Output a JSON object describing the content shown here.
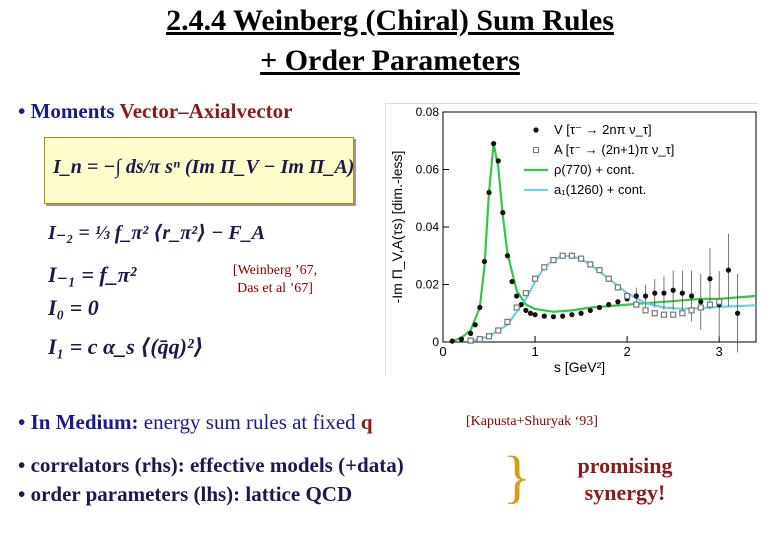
{
  "slide": {
    "title_line1": "2.4.4 Weinberg (Chiral) Sum Rules",
    "title_line2": "+ Order Parameters",
    "moments_label": "• Moments",
    "moments_highlight": "Vector–Axialvector",
    "weinberg_ref_line1": "[Weinberg ’67,",
    "weinberg_ref_line2": "Das et al ’67]",
    "medium_label": "• In Medium:",
    "medium_text": " energy sum rules at fixed ",
    "medium_q": "q",
    "kapusta_ref": "[Kapusta+Shuryak ‘93]",
    "correlators_text": "• correlators (rhs): effective models (+data)",
    "order_params_text": "• order parameters (lhs): lattice QCD",
    "promising_line1": "promising",
    "promising_line2": "synergy!"
  },
  "formulas": {
    "main": "I_n = −∫ ds/π sⁿ (Im Π_V − Im Π_A)",
    "i_minus2": "I₋₂ = ⅓ f_π² ⟨r_π²⟩ − F_A",
    "i_minus1": "I₋₁ = f_π²",
    "i_0": "I₀ = 0",
    "i_1": "I₁ = c α_s ⟨(q̄q)²⟩"
  },
  "chart_data": {
    "type": "scatter",
    "ylabel": "-Im Π_V,A(τs) [dim.-less]",
    "xlabel": "s [GeV²]",
    "xlim": [
      0,
      3.4
    ],
    "ylim": [
      0,
      0.08
    ],
    "x_ticks": [
      "0",
      "1",
      "2",
      "3"
    ],
    "y_ticks": [
      "0",
      "0.02",
      "0.04",
      "0.06",
      "0.08"
    ],
    "legend_position": "top-right",
    "legend": [
      "V [τ⁻ → 2nπ ν_τ]",
      "A [τ⁻ → (2n+1)π ν_τ]",
      "ρ(770) + cont.",
      "a₁(1260) + cont."
    ],
    "series": [
      {
        "name": "V [τ⁻ → 2nπ ν_τ]",
        "kind": "points",
        "color": "#111111",
        "x": [
          0.1,
          0.2,
          0.3,
          0.35,
          0.4,
          0.45,
          0.5,
          0.55,
          0.6,
          0.65,
          0.7,
          0.75,
          0.8,
          0.85,
          0.9,
          0.95,
          1.0,
          1.1,
          1.2,
          1.3,
          1.4,
          1.5,
          1.6,
          1.7,
          1.8,
          1.9,
          2.0,
          2.1,
          2.2,
          2.3,
          2.4,
          2.5,
          2.6,
          2.7,
          2.8,
          2.9,
          3.0,
          3.1,
          3.2
        ],
        "y": [
          0.0003,
          0.001,
          0.003,
          0.006,
          0.012,
          0.028,
          0.052,
          0.069,
          0.063,
          0.045,
          0.03,
          0.021,
          0.016,
          0.013,
          0.011,
          0.01,
          0.0095,
          0.009,
          0.0088,
          0.009,
          0.0095,
          0.01,
          0.011,
          0.012,
          0.013,
          0.014,
          0.015,
          0.016,
          0.016,
          0.017,
          0.017,
          0.018,
          0.017,
          0.016,
          0.014,
          0.022,
          0.013,
          0.025,
          0.01
        ]
      },
      {
        "name": "A [τ⁻ → (2n+1)π ν_τ]",
        "kind": "points",
        "color": "#777777",
        "x": [
          0.3,
          0.4,
          0.5,
          0.6,
          0.7,
          0.8,
          0.9,
          1.0,
          1.1,
          1.2,
          1.3,
          1.4,
          1.5,
          1.6,
          1.7,
          1.8,
          1.9,
          2.0,
          2.1,
          2.2,
          2.3,
          2.4,
          2.5,
          2.6,
          2.7,
          2.8,
          2.9,
          3.0
        ],
        "y": [
          0.0005,
          0.001,
          0.002,
          0.004,
          0.007,
          0.012,
          0.017,
          0.022,
          0.026,
          0.0285,
          0.03,
          0.03,
          0.029,
          0.027,
          0.025,
          0.022,
          0.019,
          0.016,
          0.013,
          0.011,
          0.01,
          0.0095,
          0.0095,
          0.01,
          0.011,
          0.012,
          0.013,
          0.014
        ]
      },
      {
        "name": "ρ(770) + cont.",
        "kind": "line",
        "color": "#33c74a",
        "x": [
          0.08,
          0.2,
          0.3,
          0.4,
          0.45,
          0.5,
          0.55,
          0.6,
          0.65,
          0.7,
          0.8,
          0.9,
          1.0,
          1.2,
          1.4,
          1.6,
          1.8,
          2.0,
          2.2,
          2.4,
          2.6,
          2.8,
          3.0,
          3.2,
          3.4
        ],
        "y": [
          0.0,
          0.0015,
          0.004,
          0.012,
          0.026,
          0.052,
          0.069,
          0.061,
          0.044,
          0.031,
          0.018,
          0.013,
          0.0115,
          0.0105,
          0.011,
          0.012,
          0.0125,
          0.013,
          0.0135,
          0.014,
          0.0145,
          0.015,
          0.015,
          0.0155,
          0.016
        ]
      },
      {
        "name": "a₁(1260) + cont.",
        "kind": "line",
        "color": "#6ad0e8",
        "x": [
          0.3,
          0.5,
          0.7,
          0.9,
          1.0,
          1.1,
          1.2,
          1.3,
          1.4,
          1.5,
          1.6,
          1.7,
          1.8,
          2.0,
          2.2,
          2.4,
          2.6,
          2.8,
          3.0,
          3.2,
          3.4
        ],
        "y": [
          0.0003,
          0.002,
          0.006,
          0.015,
          0.021,
          0.026,
          0.0285,
          0.03,
          0.0298,
          0.0288,
          0.027,
          0.0245,
          0.022,
          0.017,
          0.0135,
          0.012,
          0.0115,
          0.0118,
          0.0122,
          0.0125,
          0.0128
        ]
      }
    ]
  }
}
